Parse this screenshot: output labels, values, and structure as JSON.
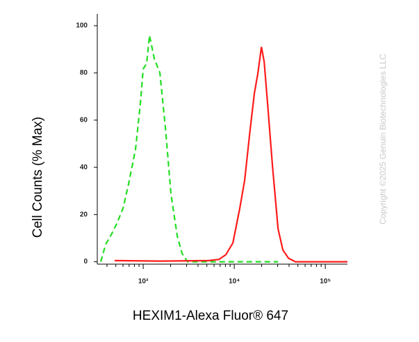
{
  "chart_data": {
    "type": "line",
    "x_label": "HEXIM1-Alexa Fluor® 647",
    "y_label": "Cell Counts (% Max)",
    "watermark": "Copyright ©2025 Genuin Biotechnologies LLC",
    "xlog": true,
    "xlim": [
      313,
      175000
    ],
    "ylim": [
      -1,
      105
    ],
    "yticks": [
      0,
      20,
      40,
      60,
      80,
      100
    ],
    "xticks": [
      {
        "value": 1000,
        "label": "10³"
      },
      {
        "value": 10000,
        "label": "10⁴"
      },
      {
        "value": 100000,
        "label": "10⁵"
      }
    ],
    "x_minor_ticks": [
      400,
      500,
      600,
      700,
      800,
      900,
      2000,
      3000,
      4000,
      5000,
      6000,
      7000,
      8000,
      9000,
      20000,
      30000,
      40000,
      50000,
      60000,
      70000,
      80000,
      90000
    ],
    "series": [
      {
        "color": "#22dd22",
        "dash": true,
        "x": [
          342,
          387,
          446,
          513,
          601,
          692,
          824,
          931,
          1000,
          1092,
          1172,
          1324,
          1525,
          1754,
          2018,
          2366,
          2673,
          3081,
          30300
        ],
        "values": [
          0,
          7.4,
          11.5,
          16.2,
          22.7,
          33,
          47.8,
          67,
          81.7,
          84,
          95.9,
          86,
          80,
          56.6,
          28.6,
          10.9,
          3.5,
          0,
          0
        ]
      },
      {
        "color": "#ff1a1a",
        "dash": false,
        "x": [
          486,
          1525,
          5224,
          6790,
          8088,
          9660,
          11510,
          13020,
          15000,
          16640,
          18190,
          19860,
          21300,
          23230,
          26300,
          30300,
          34200,
          39400,
          47000,
          175000
        ],
        "values": [
          0.5,
          0.3,
          0.5,
          1,
          3,
          8,
          22.7,
          34.5,
          56.6,
          71.4,
          80,
          91,
          84.7,
          67,
          40.4,
          13.9,
          5,
          1.5,
          0,
          0
        ]
      }
    ]
  }
}
